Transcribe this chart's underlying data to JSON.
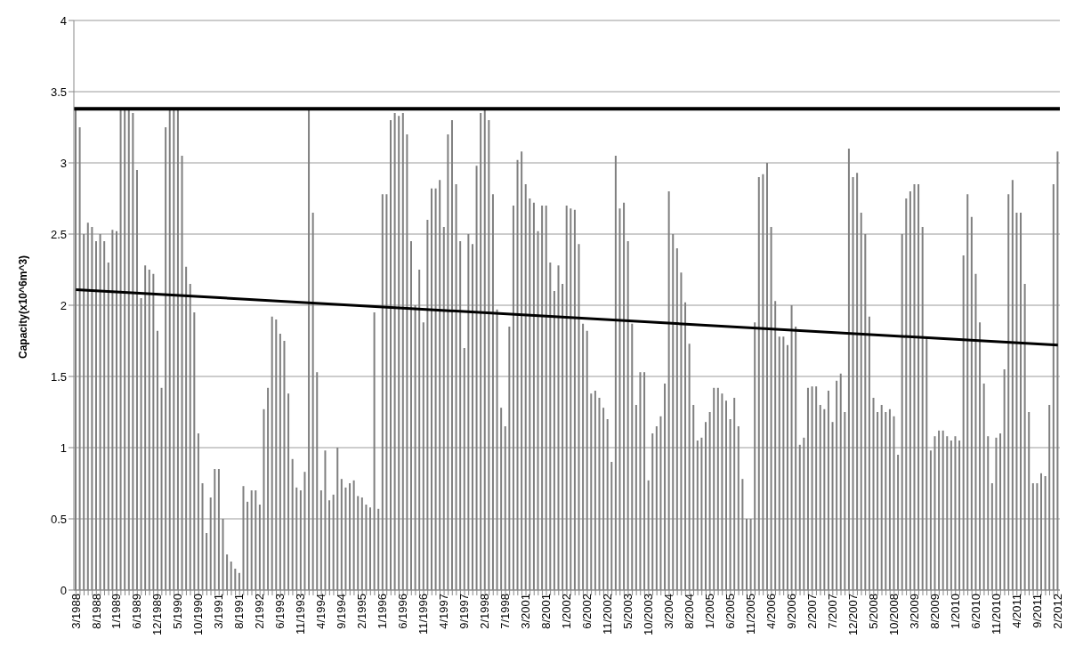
{
  "chart_data": {
    "type": "bar",
    "ylabel": "Capacity(x10^6m^3)",
    "categories": [
      "3/1988",
      null,
      null,
      null,
      null,
      "8/1988",
      null,
      null,
      null,
      null,
      "1/1989",
      null,
      null,
      null,
      null,
      "6/1989",
      null,
      null,
      null,
      null,
      "12/1989",
      null,
      null,
      null,
      null,
      "5/1990",
      null,
      null,
      null,
      null,
      "10/1990",
      null,
      null,
      null,
      null,
      "3/1991",
      null,
      null,
      null,
      null,
      "8/1991",
      null,
      null,
      null,
      null,
      "2/1992",
      null,
      null,
      null,
      null,
      "6/1993",
      null,
      null,
      null,
      null,
      "11/1993",
      null,
      null,
      null,
      null,
      "4/1994",
      null,
      null,
      null,
      null,
      "9/1994",
      null,
      null,
      null,
      null,
      "2/1995",
      null,
      null,
      null,
      null,
      "1/1996",
      null,
      null,
      null,
      null,
      "6/1996",
      null,
      null,
      null,
      null,
      "11/1996",
      null,
      null,
      null,
      null,
      "4/1997",
      null,
      null,
      null,
      null,
      "9/1997",
      null,
      null,
      null,
      null,
      "2/1998",
      null,
      null,
      null,
      null,
      "7/1998",
      null,
      null,
      null,
      null,
      "3/2001",
      null,
      null,
      null,
      null,
      "8/2001",
      null,
      null,
      null,
      null,
      "1/2002",
      null,
      null,
      null,
      null,
      "6/2002",
      null,
      null,
      null,
      null,
      "11/2002",
      null,
      null,
      null,
      null,
      "5/2003",
      null,
      null,
      null,
      null,
      "10/2003",
      null,
      null,
      null,
      null,
      "3/2004",
      null,
      null,
      null,
      null,
      "8/2004",
      null,
      null,
      null,
      null,
      "1/2005",
      null,
      null,
      null,
      null,
      "6/2005",
      null,
      null,
      null,
      null,
      "11/2005",
      null,
      null,
      null,
      null,
      "4/2006",
      null,
      null,
      null,
      null,
      "9/2006",
      null,
      null,
      null,
      null,
      "2/2007",
      null,
      null,
      null,
      null,
      "7/2007",
      null,
      null,
      null,
      null,
      "12/2007",
      null,
      null,
      null,
      null,
      "5/2008",
      null,
      null,
      null,
      null,
      "10/2008",
      null,
      null,
      null,
      null,
      "3/2009",
      null,
      null,
      null,
      null,
      "8/2009",
      null,
      null,
      null,
      null,
      "1/2010",
      null,
      null,
      null,
      null,
      "6/2010",
      null,
      null,
      null,
      null,
      "11/2010",
      null,
      null,
      null,
      null,
      "4/2011",
      null,
      null,
      null,
      null,
      "9/2011",
      null,
      null,
      null,
      null,
      "2/2012"
    ],
    "series": [
      {
        "color": "#7f7f7f",
        "values": [
          3.38,
          3.25,
          2.5,
          2.58,
          2.55,
          2.45,
          2.5,
          2.45,
          2.3,
          2.53,
          2.52,
          3.38,
          3.38,
          3.38,
          3.35,
          2.95,
          2.05,
          2.28,
          2.25,
          2.22,
          1.82,
          1.42,
          3.25,
          3.38,
          3.38,
          3.38,
          3.05,
          2.27,
          2.15,
          1.95,
          1.1,
          0.75,
          0.4,
          0.65,
          0.85,
          0.85,
          0.5,
          0.25,
          0.2,
          0.15,
          0.12,
          0.73,
          0.62,
          0.7,
          0.7,
          0.6,
          1.27,
          1.42,
          1.92,
          1.9,
          1.8,
          1.75,
          1.38,
          0.92,
          0.72,
          0.7,
          0.83,
          3.38,
          2.65,
          1.53,
          0.7,
          0.98,
          0.63,
          0.67,
          1.0,
          0.78,
          0.72,
          0.75,
          0.77,
          0.66,
          0.65,
          0.6,
          0.58,
          1.95,
          0.57,
          2.78,
          2.78,
          3.3,
          3.35,
          3.33,
          3.35,
          3.2,
          2.45,
          2.0,
          2.25,
          1.88,
          2.6,
          2.82,
          2.82,
          2.88,
          2.55,
          3.2,
          3.3,
          2.85,
          2.45,
          1.7,
          2.5,
          2.43,
          2.98,
          3.35,
          3.37,
          3.3,
          2.78,
          1.97,
          1.28,
          1.15,
          1.85,
          2.7,
          3.02,
          3.08,
          2.85,
          2.75,
          2.72,
          2.52,
          2.7,
          2.7,
          2.3,
          2.1,
          2.28,
          2.15,
          2.7,
          2.68,
          2.67,
          2.43,
          1.87,
          1.82,
          1.38,
          1.4,
          1.35,
          1.28,
          1.2,
          0.9,
          3.05,
          2.68,
          2.72,
          2.45,
          1.87,
          1.3,
          1.53,
          1.53,
          0.77,
          1.1,
          1.15,
          1.22,
          1.45,
          2.8,
          2.5,
          2.4,
          2.23,
          2.02,
          1.73,
          1.3,
          1.05,
          1.07,
          1.18,
          1.25,
          1.42,
          1.42,
          1.38,
          1.33,
          1.2,
          1.35,
          1.15,
          0.78,
          0.5,
          0.5,
          1.88,
          2.9,
          2.92,
          3.0,
          2.55,
          2.03,
          1.78,
          1.78,
          1.72,
          2.0,
          1.85,
          1.02,
          1.07,
          1.42,
          1.43,
          1.43,
          1.3,
          1.27,
          1.4,
          1.18,
          1.47,
          1.52,
          1.25,
          3.1,
          2.9,
          2.93,
          2.65,
          2.5,
          1.92,
          1.35,
          1.25,
          1.3,
          1.25,
          1.27,
          1.22,
          0.95,
          2.5,
          2.75,
          2.8,
          2.85,
          2.85,
          2.55,
          1.77,
          0.98,
          1.08,
          1.12,
          1.12,
          1.08,
          1.05,
          1.08,
          1.05,
          2.35,
          2.78,
          2.62,
          2.22,
          1.88,
          1.45,
          1.08,
          0.75,
          1.07,
          1.1,
          1.55,
          2.78,
          2.88,
          2.65,
          2.65,
          2.15,
          1.25,
          0.75,
          0.75,
          0.82,
          0.8,
          1.3,
          2.85,
          3.08
        ]
      },
      {
        "type": "line",
        "color": "#000000",
        "x": [
          "3/1988",
          "2/2012"
        ],
        "values": [
          2.11,
          1.72
        ]
      }
    ],
    "ylim": [
      0,
      4
    ],
    "yticks": [
      0,
      0.5,
      1,
      1.5,
      2,
      2.5,
      3,
      3.5,
      4
    ],
    "grid": "y",
    "ref_lines": [
      {
        "axis": "y",
        "value": 3.38,
        "color": "#000000"
      }
    ]
  }
}
